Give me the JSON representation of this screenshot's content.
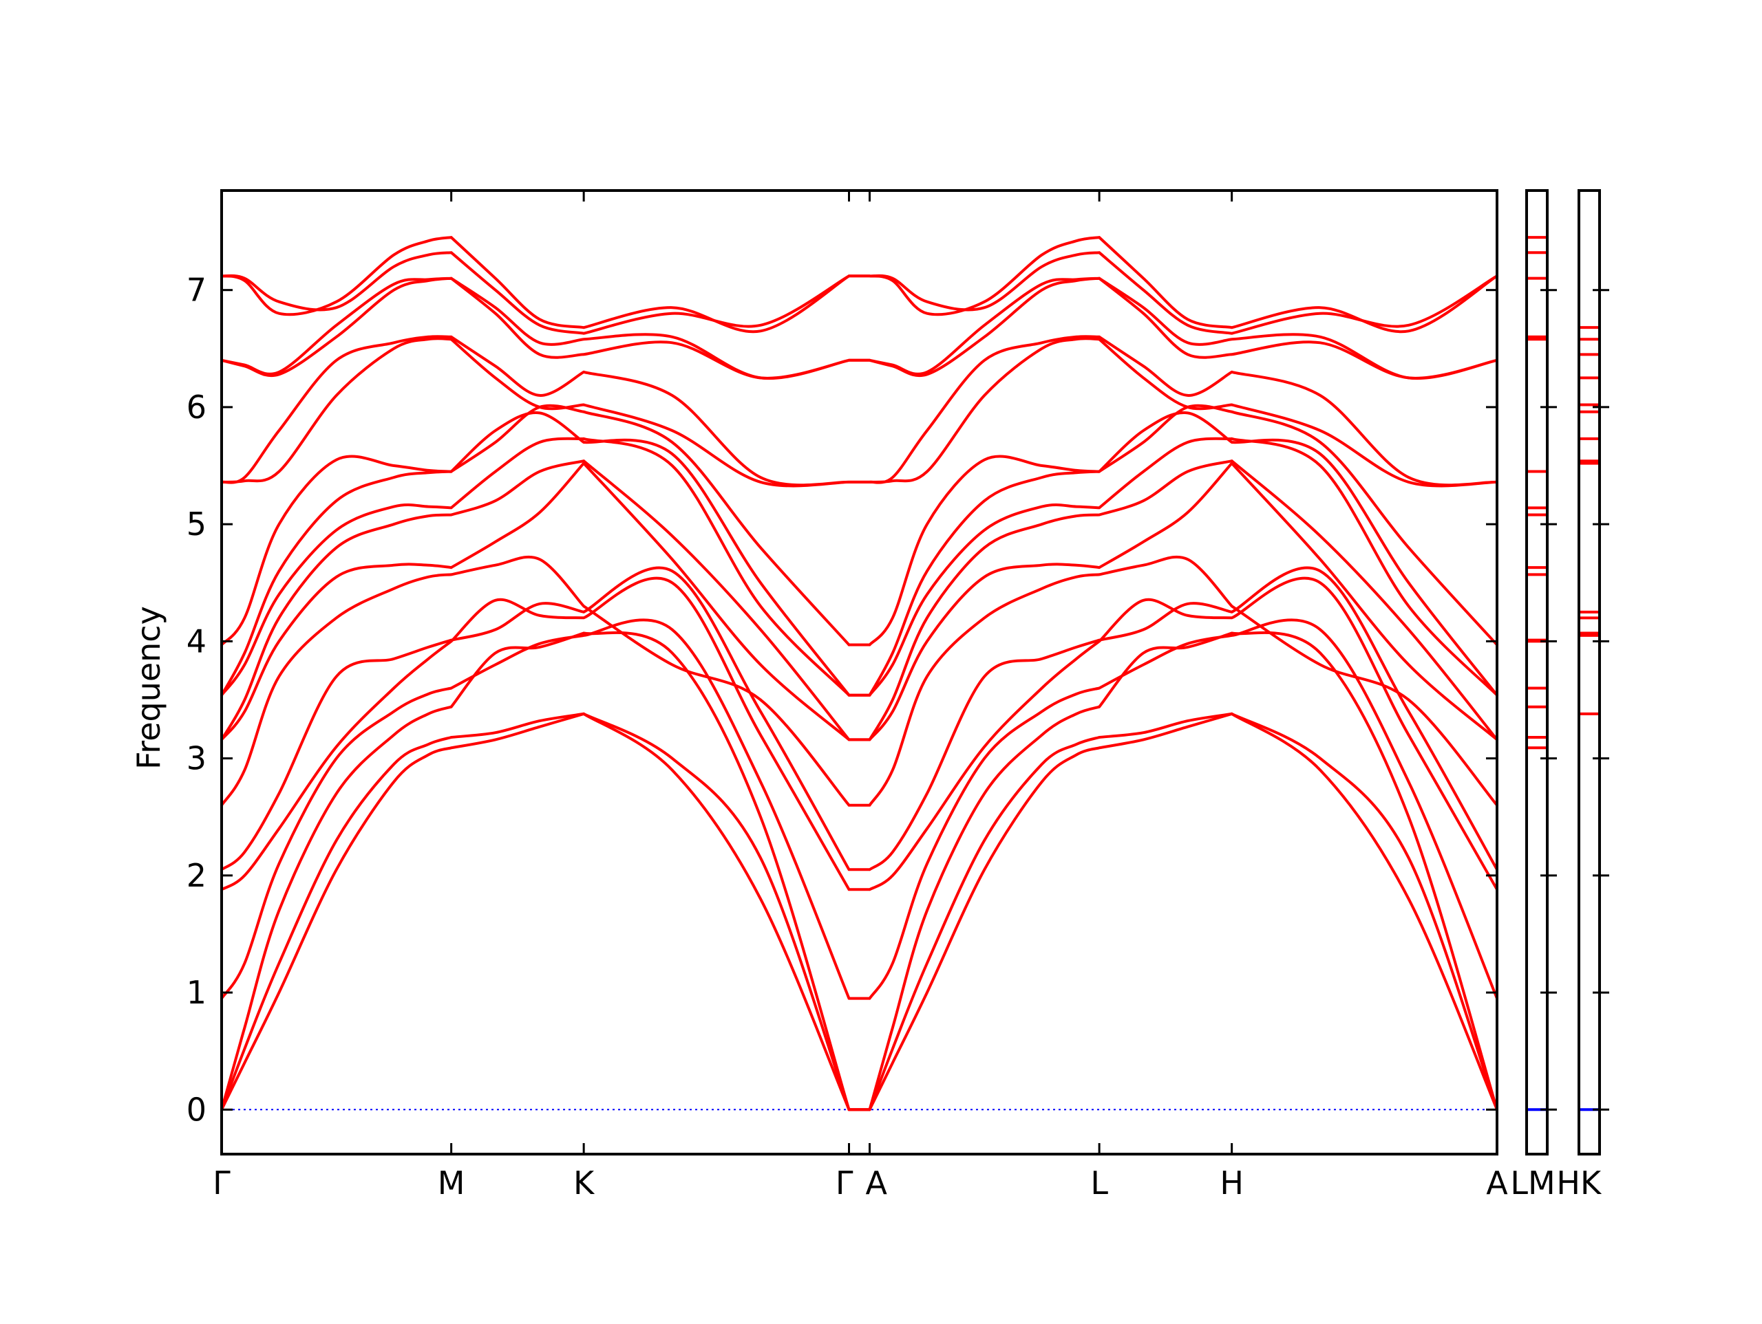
{
  "chart_data": {
    "type": "line",
    "title": "",
    "xlabel": "",
    "ylabel": "Frequency",
    "ylim": [
      -0.38,
      7.85
    ],
    "yticks": [
      0,
      1,
      2,
      3,
      4,
      5,
      6,
      7
    ],
    "grid": false,
    "legend": "none",
    "band_color": "#ff0000",
    "zero_line_color": "#0000ff",
    "path_segments": [
      {
        "start": "Γ",
        "end": "M",
        "length": 1.0
      },
      {
        "start": "M",
        "end": "K",
        "length": 0.577
      },
      {
        "start": "K",
        "end": "Γ",
        "length": 1.155
      },
      {
        "start": "Γ",
        "end": "A",
        "length": 0.09
      },
      {
        "start": "A",
        "end": "L",
        "length": 1.0
      },
      {
        "start": "L",
        "end": "H",
        "length": 0.577
      },
      {
        "start": "H",
        "end": "A",
        "length": 1.155
      }
    ],
    "x_ticks": [
      {
        "pos": 0.0,
        "label": "Γ"
      },
      {
        "pos": 1.0,
        "label": "M"
      },
      {
        "pos": 1.577,
        "label": "K"
      },
      {
        "pos": 2.732,
        "label": "Γ"
      },
      {
        "pos": 2.822,
        "label": "A"
      },
      {
        "pos": 3.822,
        "label": "L"
      },
      {
        "pos": 4.399,
        "label": "H"
      },
      {
        "pos": 5.554,
        "label": "A"
      }
    ],
    "band_samples_x": [
      0,
      0.1,
      0.25,
      0.5,
      0.75,
      0.9,
      1.0
    ],
    "bands": [
      {
        "GM": [
          0,
          0.4,
          1.0,
          2.05,
          2.8,
          3.03,
          3.09
        ],
        "MK": [
          3.09,
          3.16,
          3.27,
          3.38
        ],
        "KG": [
          3.38,
          3.0,
          2.15,
          0
        ]
      },
      {
        "GM": [
          0,
          0.52,
          1.25,
          2.3,
          2.95,
          3.12,
          3.18
        ],
        "MK": [
          3.18,
          3.22,
          3.32,
          3.38
        ],
        "KG": [
          3.38,
          2.9,
          1.8,
          0
        ]
      },
      {
        "GM": [
          0,
          0.7,
          1.7,
          2.7,
          3.2,
          3.38,
          3.44
        ],
        "MK": [
          3.44,
          3.9,
          3.95,
          4.07
        ],
        "KG": [
          4.07,
          3.9,
          2.5,
          0
        ]
      },
      {
        "GM": [
          0.95,
          1.25,
          2.1,
          3.0,
          3.4,
          3.55,
          3.6
        ],
        "MK": [
          3.6,
          3.8,
          3.98,
          4.05
        ],
        "KG": [
          4.05,
          4.1,
          2.8,
          0.95
        ]
      },
      {
        "GM": [
          1.88,
          2.0,
          2.4,
          3.1,
          3.6,
          3.85,
          4.0
        ],
        "MK": [
          4.0,
          4.35,
          4.22,
          4.2
        ],
        "KG": [
          4.2,
          4.5,
          3.2,
          1.88
        ]
      },
      {
        "GM": [
          2.05,
          2.2,
          2.7,
          3.7,
          3.85,
          3.95,
          4.01
        ],
        "MK": [
          4.01,
          4.1,
          4.32,
          4.25
        ],
        "KG": [
          4.25,
          4.6,
          3.4,
          2.05
        ]
      },
      {
        "GM": [
          2.6,
          2.9,
          3.7,
          4.2,
          4.45,
          4.55,
          4.57
        ],
        "MK": [
          4.57,
          4.65,
          4.7,
          4.3
        ],
        "KG": [
          4.3,
          3.8,
          3.5,
          2.6
        ]
      },
      {
        "GM": [
          3.16,
          3.4,
          4.0,
          4.55,
          4.65,
          4.65,
          4.63
        ],
        "MK": [
          4.63,
          4.85,
          5.1,
          5.52
        ],
        "KG": [
          5.52,
          4.7,
          3.8,
          3.16
        ]
      },
      {
        "GM": [
          3.16,
          3.5,
          4.2,
          4.8,
          5.0,
          5.07,
          5.08
        ],
        "MK": [
          5.08,
          5.2,
          5.45,
          5.54
        ],
        "KG": [
          5.54,
          4.9,
          4.1,
          3.16
        ]
      },
      {
        "GM": [
          3.54,
          3.8,
          4.4,
          4.95,
          5.15,
          5.15,
          5.14
        ],
        "MK": [
          5.14,
          5.45,
          5.7,
          5.73
        ],
        "KG": [
          5.73,
          5.5,
          4.3,
          3.54
        ]
      },
      {
        "GM": [
          3.54,
          3.9,
          4.6,
          5.2,
          5.4,
          5.44,
          5.45
        ],
        "MK": [
          5.45,
          5.8,
          5.95,
          5.7
        ],
        "KG": [
          5.7,
          5.6,
          4.5,
          3.54
        ]
      },
      {
        "GM": [
          3.97,
          4.2,
          5.0,
          5.55,
          5.5,
          5.46,
          5.45
        ],
        "MK": [
          5.45,
          5.7,
          6.0,
          5.96
        ],
        "KG": [
          5.96,
          5.7,
          4.8,
          3.97
        ]
      },
      {
        "GM": [
          5.36,
          5.37,
          5.45,
          6.1,
          6.5,
          6.58,
          6.58
        ],
        "MK": [
          6.58,
          6.25,
          6.0,
          6.02
        ],
        "KG": [
          6.02,
          5.8,
          5.36,
          5.36
        ]
      },
      {
        "GM": [
          5.36,
          5.4,
          5.8,
          6.4,
          6.55,
          6.6,
          6.6
        ],
        "MK": [
          6.6,
          6.35,
          6.1,
          6.3
        ],
        "KG": [
          6.3,
          6.1,
          5.4,
          5.36
        ]
      },
      {
        "GM": [
          6.4,
          6.35,
          6.28,
          6.6,
          7.0,
          7.08,
          7.1
        ],
        "MK": [
          7.1,
          6.8,
          6.45,
          6.45
        ],
        "KG": [
          6.45,
          6.55,
          6.25,
          6.4
        ]
      },
      {
        "GM": [
          6.4,
          6.36,
          6.3,
          6.7,
          7.05,
          7.09,
          7.1
        ],
        "MK": [
          7.1,
          6.85,
          6.55,
          6.58
        ],
        "KG": [
          6.58,
          6.6,
          6.25,
          6.4
        ]
      },
      {
        "GM": [
          7.12,
          7.1,
          6.9,
          6.85,
          7.2,
          7.3,
          7.32
        ],
        "MK": [
          7.32,
          7.0,
          6.7,
          6.63
        ],
        "KG": [
          6.63,
          6.8,
          6.7,
          7.12
        ]
      },
      {
        "GM": [
          7.12,
          7.08,
          6.8,
          6.9,
          7.3,
          7.42,
          7.45
        ],
        "MK": [
          7.45,
          7.1,
          6.75,
          6.68
        ],
        "KG": [
          6.68,
          6.85,
          6.65,
          7.12
        ]
      }
    ],
    "dos_panels": [
      {
        "labels": [
          "L",
          "M"
        ],
        "levels": [
          0,
          3.09,
          3.18,
          3.44,
          3.6,
          4.0,
          4.01,
          4.57,
          4.63,
          5.08,
          5.14,
          5.45,
          6.58,
          6.6,
          7.1,
          7.32,
          7.45
        ]
      },
      {
        "labels": [
          "H",
          "K"
        ],
        "levels": [
          0,
          3.38,
          4.05,
          4.07,
          4.2,
          4.25,
          5.52,
          5.54,
          5.73,
          5.96,
          6.02,
          6.25,
          6.45,
          6.58,
          6.68
        ]
      }
    ]
  }
}
